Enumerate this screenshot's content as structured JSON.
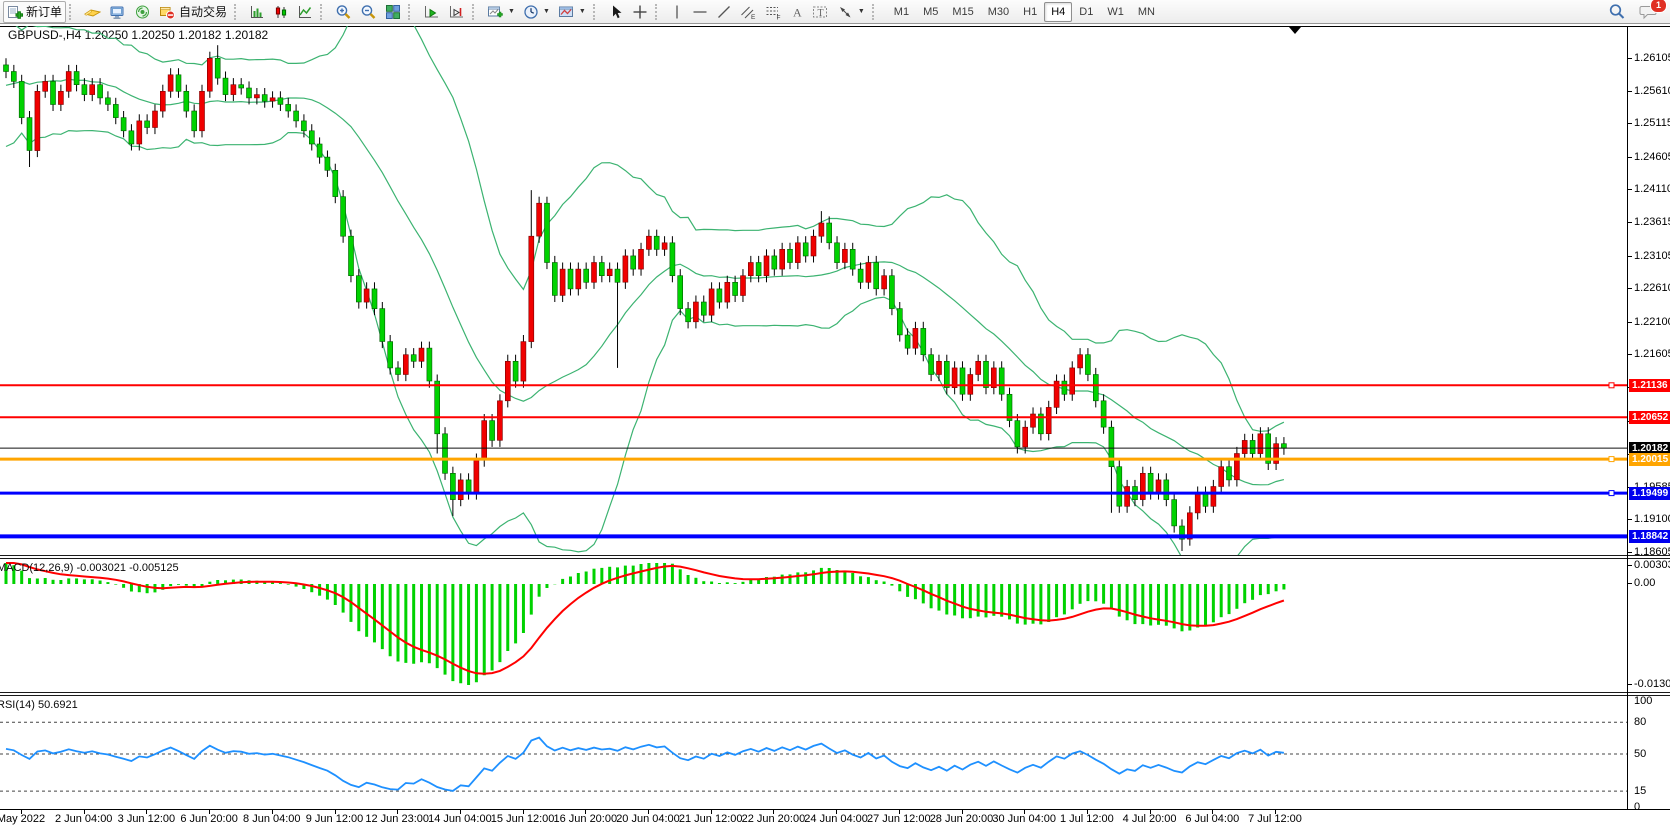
{
  "toolbar": {
    "new_order_label": "新订单",
    "auto_trading_label": "自动交易",
    "timeframes": [
      "M1",
      "M5",
      "M15",
      "M30",
      "H1",
      "H4",
      "D1",
      "W1",
      "MN"
    ],
    "active_timeframe": "H4",
    "notification_count": "1"
  },
  "chart": {
    "title": "GBPUSD-,H4  1.20250 1.20250 1.20182 1.20182",
    "symbol": "GBPUSD-",
    "period": "H4",
    "price_axis": [
      "1.26105",
      "1.25610",
      "1.25115",
      "1.24605",
      "1.24110",
      "1.23615",
      "1.23105",
      "1.22610",
      "1.22100",
      "1.21605",
      "1.21110",
      "1.20600",
      "1.20090",
      "1.19585",
      "1.19100",
      "1.18605"
    ],
    "price_badges": [
      {
        "text": "1.21136",
        "price": 1.21136,
        "bg": "#ff0000"
      },
      {
        "text": "1.20652",
        "price": 1.20652,
        "bg": "#ff0000"
      },
      {
        "text": "1.20182",
        "price": 1.20182,
        "bg": "#000000"
      },
      {
        "text": "1.20015",
        "price": 1.20015,
        "bg": "#ffa500"
      },
      {
        "text": "1.19499",
        "price": 1.19499,
        "bg": "#0000ee"
      },
      {
        "text": "1.18842",
        "price": 1.18842,
        "bg": "#0000ee"
      }
    ],
    "hlines": [
      {
        "price": 1.21136,
        "color": "#ff0000",
        "w": 2,
        "handle": true
      },
      {
        "price": 1.20652,
        "color": "#ff0000",
        "w": 2,
        "handle": false
      },
      {
        "price": 1.20182,
        "color": "#111111",
        "w": 1,
        "handle": false
      },
      {
        "price": 1.20015,
        "color": "#ffa500",
        "w": 3,
        "handle": true
      },
      {
        "price": 1.19499,
        "color": "#0000ff",
        "w": 3,
        "handle": true
      },
      {
        "price": 1.18842,
        "color": "#0000ff",
        "w": 4,
        "handle": false
      }
    ],
    "time_axis": [
      "May 2022",
      "2 Jun 04:00",
      "3 Jun 12:00",
      "6 Jun 20:00",
      "8 Jun 04:00",
      "9 Jun 12:00",
      "12 Jun 23:00",
      "14 Jun 04:00",
      "15 Jun 12:00",
      "16 Jun 20:00",
      "20 Jun 04:00",
      "21 Jun 12:00",
      "22 Jun 20:00",
      "24 Jun 04:00",
      "27 Jun 12:00",
      "28 Jun 20:00",
      "30 Jun 04:00",
      "1 Jul 12:00",
      "4 Jul 20:00",
      "6 Jul 04:00",
      "7 Jul 12:00"
    ]
  },
  "macd": {
    "label": "MACD(12,26,9) -0.003021 -0.005125",
    "axis": [
      "0.003036",
      "0.00",
      "-0.013094"
    ],
    "values": [
      -0.003021,
      -0.005125
    ]
  },
  "rsi": {
    "label": "RSI(14) 50.6921",
    "axis": [
      "100",
      "80",
      "50",
      "15",
      "0"
    ],
    "levels": [
      80,
      50,
      15
    ],
    "value": 50.6921
  },
  "chart_data": {
    "type": "candlestick",
    "symbol": "GBPUSD-",
    "timeframe": "H4",
    "up_color": "#f00000",
    "down_color": "#00d200",
    "band_color": "#3cb371",
    "open_first": 1.26,
    "pre_closes": [
      1.248,
      1.252,
      1.246,
      1.255,
      1.25,
      1.256,
      1.251,
      1.257,
      1.253,
      1.261,
      1.255,
      1.262,
      1.256,
      1.263,
      1.258,
      1.264,
      1.26,
      1.262,
      1.258,
      1.26
    ],
    "closes": [
      1.259,
      1.2575,
      1.252,
      1.247,
      1.256,
      1.2575,
      1.254,
      1.256,
      1.259,
      1.257,
      1.2555,
      1.257,
      1.255,
      1.254,
      1.252,
      1.25,
      1.248,
      1.2515,
      1.2505,
      1.253,
      1.256,
      1.2585,
      1.256,
      1.253,
      1.25,
      1.256,
      1.261,
      1.258,
      1.2555,
      1.257,
      1.2565,
      1.255,
      1.2555,
      1.2545,
      1.255,
      1.254,
      1.253,
      1.2515,
      1.25,
      1.248,
      1.246,
      1.244,
      1.24,
      1.234,
      1.228,
      1.224,
      1.226,
      1.223,
      1.218,
      1.214,
      1.213,
      1.216,
      1.215,
      1.217,
      1.212,
      1.204,
      1.198,
      1.194,
      1.197,
      1.195,
      1.2,
      1.206,
      1.203,
      1.209,
      1.215,
      1.212,
      1.218,
      1.234,
      1.239,
      1.23,
      1.225,
      1.229,
      1.226,
      1.229,
      1.227,
      1.23,
      1.228,
      1.229,
      1.227,
      1.231,
      1.229,
      1.232,
      1.234,
      1.232,
      1.233,
      1.228,
      1.223,
      1.221,
      1.224,
      1.222,
      1.226,
      1.224,
      1.227,
      1.225,
      1.228,
      1.23,
      1.228,
      1.231,
      1.229,
      1.232,
      1.23,
      1.233,
      1.231,
      1.234,
      1.236,
      1.233,
      1.23,
      1.232,
      1.229,
      1.227,
      1.23,
      1.226,
      1.228,
      1.223,
      1.219,
      1.217,
      1.22,
      1.216,
      1.213,
      1.215,
      1.211,
      1.214,
      1.21,
      1.213,
      1.215,
      1.211,
      1.214,
      1.21,
      1.206,
      1.202,
      1.205,
      1.207,
      1.204,
      1.208,
      1.212,
      1.21,
      1.214,
      1.216,
      1.213,
      1.209,
      1.205,
      1.199,
      1.193,
      1.196,
      1.194,
      1.198,
      1.195,
      1.197,
      1.194,
      1.19,
      1.188,
      1.192,
      1.195,
      1.193,
      1.196,
      1.199,
      1.197,
      1.201,
      1.203,
      1.201,
      1.204,
      1.1995,
      1.2025,
      1.2018
    ],
    "wick_overrides": {
      "3": [
        0,
        0.0015
      ],
      "27": [
        0.001,
        0
      ],
      "55": [
        0,
        0.002
      ],
      "57": [
        0,
        0.0015
      ],
      "67": [
        0.006,
        0
      ],
      "78": [
        0,
        0.012
      ],
      "104": [
        0.0008,
        0
      ],
      "141": [
        0,
        0.006
      ],
      "150": [
        0,
        0.0008
      ]
    },
    "indicators": [
      {
        "name": "Bollinger Bands",
        "period": 20,
        "deviation": 2
      },
      {
        "name": "MACD",
        "params": [
          12,
          26,
          9
        ],
        "current": [
          -0.003021,
          -0.005125
        ]
      },
      {
        "name": "RSI",
        "period": 14,
        "current": 50.6921
      }
    ]
  }
}
